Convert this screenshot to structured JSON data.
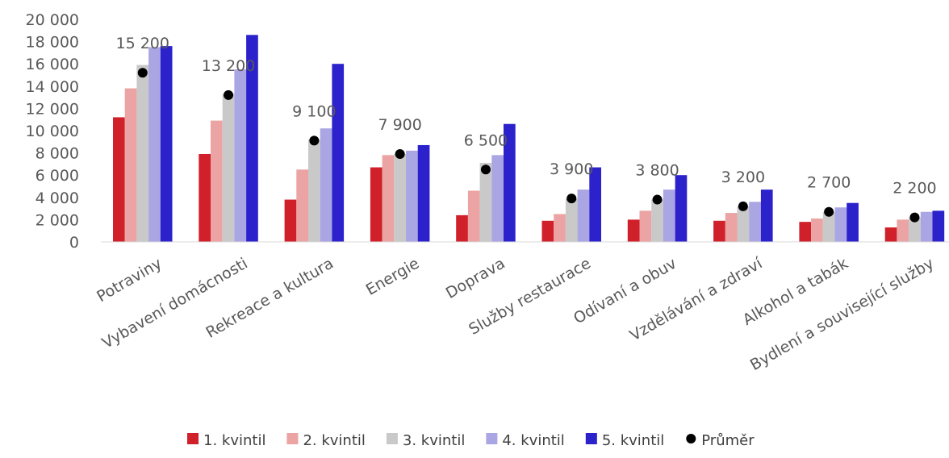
{
  "chart_data": {
    "type": "bar",
    "categories": [
      "Potraviny",
      "Vybavení domácnosti",
      "Rekreace a kultura",
      "Energie",
      "Doprava",
      "Služby restaurace",
      "Odívaní a obuv",
      "Vzdělávání a zdraví",
      "Alkohol a tabák",
      "Bydlení a související služby"
    ],
    "series": [
      {
        "name": "1. kvintil",
        "color": "#d0202a",
        "values": [
          11200,
          7900,
          3800,
          6700,
          2400,
          1900,
          2000,
          1900,
          1800,
          1300
        ]
      },
      {
        "name": "2. kvintil",
        "color": "#eba3a3",
        "values": [
          13800,
          10900,
          6500,
          7800,
          4600,
          2500,
          2800,
          2600,
          2100,
          2000
        ]
      },
      {
        "name": "3. kvintil",
        "color": "#c9c9c9",
        "values": [
          15900,
          13300,
          9200,
          7900,
          7100,
          3900,
          3800,
          3200,
          2700,
          2200
        ]
      },
      {
        "name": "4. kvintil",
        "color": "#aaa5e3",
        "values": [
          17500,
          15500,
          10200,
          8200,
          7800,
          4700,
          4700,
          3600,
          3100,
          2700
        ]
      },
      {
        "name": "5. kvintil",
        "color": "#2b22cc",
        "values": [
          17600,
          18600,
          16000,
          8700,
          10600,
          6700,
          6000,
          4700,
          3500,
          2800
        ]
      }
    ],
    "average": {
      "name": "Průměr",
      "color": "#000000",
      "values": [
        15200,
        13200,
        9100,
        7900,
        6500,
        3900,
        3800,
        3200,
        2700,
        2200
      ],
      "labels": [
        "15 200",
        "13 200",
        "9 100",
        "7 900",
        "6 500",
        "3 900",
        "3 800",
        "3 200",
        "2 700",
        "2 200"
      ]
    },
    "y_ticks": [
      0,
      2000,
      4000,
      6000,
      8000,
      10000,
      12000,
      14000,
      16000,
      18000,
      20000
    ],
    "y_tick_labels": [
      "0",
      "2 000",
      "4 000",
      "6 000",
      "8 000",
      "10 000",
      "12 000",
      "14 000",
      "16 000",
      "18 000",
      "20 000"
    ],
    "ylim": [
      0,
      20000
    ],
    "grid": false,
    "legend_position": "bottom"
  }
}
